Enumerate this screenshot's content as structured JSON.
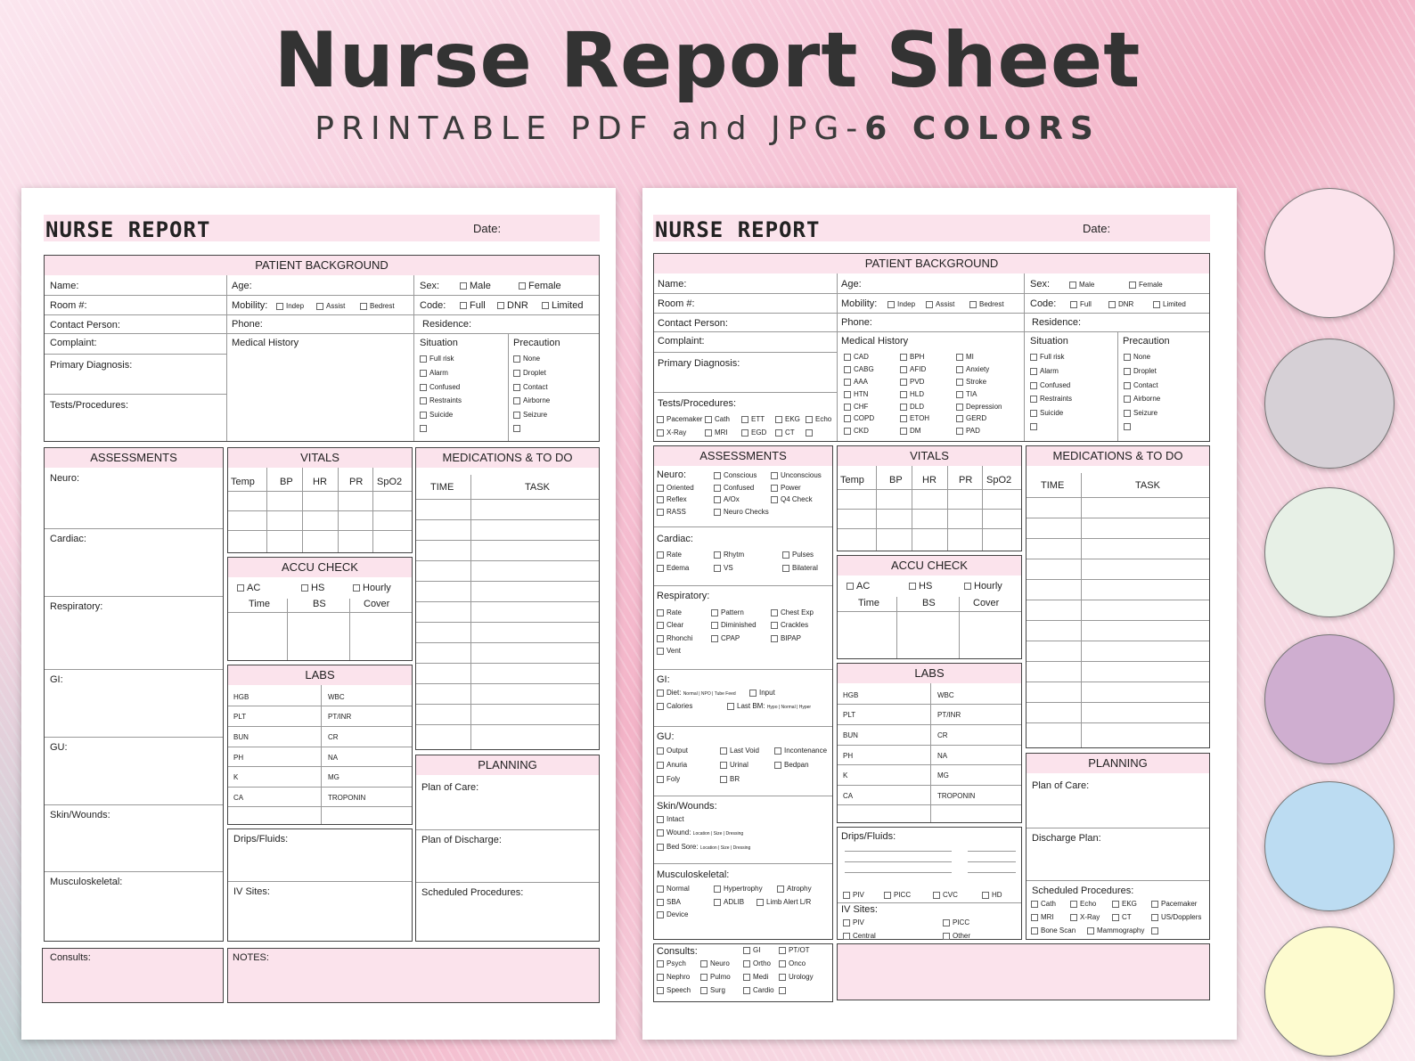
{
  "header": {
    "title": "Nurse Report Sheet",
    "subtitle_a": "PRINTABLE PDF and JPG-",
    "subtitle_b": "6 COLORS"
  },
  "sheet": {
    "title": "NURSE REPORT",
    "date": "Date:"
  },
  "pb": {
    "title": "PATIENT BACKGROUND",
    "name": "Name:",
    "age": "Age:",
    "sex": "Sex:",
    "male": "Male",
    "female": "Female",
    "room": "Room #:",
    "mobility": "Mobility:",
    "indep": "Indep",
    "assist": "Assist",
    "bedrest": "Bedrest",
    "code": "Code:",
    "full": "Full",
    "dnr": "DNR",
    "limited": "Limited",
    "contact": "Contact Person:",
    "phone": "Phone:",
    "residence": "Residence:",
    "complaint": "Complaint:",
    "medhist": "Medical History",
    "situation": "Situation",
    "precaution": "Precaution",
    "primary": "Primary Diagnosis:",
    "tests": "Tests/Procedures:",
    "sit": [
      "Full risk",
      "Alarm",
      "Confused",
      "Restraints",
      "Suicide"
    ],
    "prec": [
      "None",
      "Droplet",
      "Contact",
      "Airborne",
      "Seizure"
    ],
    "mh": [
      "CAD",
      "BPH",
      "MI",
      "CABG",
      "AFID",
      "Anxiety",
      "AAA",
      "PVD",
      "Stroke",
      "HTN",
      "HLD",
      "TIA",
      "CHF",
      "DLD",
      "Depression",
      "COPD",
      "ETOH",
      "GERD",
      "CKD",
      "DM",
      "PAD"
    ],
    "tp": [
      "Pacemaker",
      "Cath",
      "ETT",
      "EKG",
      "Echo",
      "X-Ray",
      "MRI",
      "EGD",
      "CT"
    ]
  },
  "assess": {
    "title": "ASSESSMENTS",
    "neuro": "Neuro:",
    "cardiac": "Cardiac:",
    "resp": "Respiratory:",
    "gi": "GI:",
    "gu": "GU:",
    "skin": "Skin/Wounds:",
    "musc": "Musculoskeletal:",
    "musc2": "Musculoskeletal:",
    "neuro_items": [
      "Conscious",
      "Unconscious",
      "Oriented",
      "Confused",
      "Power",
      "Reflex",
      "A/Ox",
      "Q4 Check",
      "RASS",
      "Neuro Checks"
    ],
    "card_items": [
      "Rate",
      "Rhytm",
      "Pulses",
      "Edema",
      "VS",
      "Bilateral"
    ],
    "resp_items": [
      "Rate",
      "Pattern",
      "Chest Exp",
      "Clear",
      "Diminished",
      "Crackles",
      "Rhonchi",
      "CPAP",
      "BIPAP",
      "Vent"
    ],
    "gi_items": [
      "Diet:",
      "Normal | NPO | Tube Feed",
      "Input",
      "Calories",
      "Last BM:",
      "Hypo | Normal | Hyper"
    ],
    "gu_items": [
      "Output",
      "Last Void",
      "Incontenance",
      "Anuria",
      "Urinal",
      "Bedpan",
      "Foly",
      "BR"
    ],
    "skin_items": [
      "Intact",
      "Wound:",
      "Location",
      "| Size",
      "| Dressing",
      "Bed Sore:"
    ],
    "musc_items": [
      "Normal",
      "Hypertrophy",
      "Atrophy",
      "SBA",
      "ADLIB",
      "Limb Alert L/R",
      "Device"
    ]
  },
  "vitals": {
    "title": "VITALS",
    "cols": [
      "Temp",
      "BP",
      "HR",
      "PR",
      "SpO2"
    ]
  },
  "accu": {
    "title": "ACCU CHECK",
    "ac": "AC",
    "hs": "HS",
    "hourly": "Hourly",
    "time": "Time",
    "bs": "BS",
    "cover": "Cover"
  },
  "labs": {
    "title": "LABS",
    "left": [
      "HGB",
      "PLT",
      "BUN",
      "PH",
      "K",
      "CA"
    ],
    "right": [
      "WBC",
      "PT/INR",
      "CR",
      "NA",
      "MG",
      "TROPONIN"
    ]
  },
  "drips": {
    "drips": "Drips/Fluids:",
    "iv": "IV Sites:",
    "lines": [
      "PIV",
      "PICC",
      "CVC",
      "HD"
    ],
    "iv_items": [
      "PIV",
      "PICC",
      "Central",
      "Other"
    ]
  },
  "meds": {
    "title": "MEDICATIONS & TO DO",
    "time": "TIME",
    "task": "TASK"
  },
  "plan": {
    "title": "PLANNING",
    "care": "Plan of Care:",
    "discharge1": "Plan of Discharge:",
    "discharge2": "Discharge Plan:",
    "sched": "Scheduled Procedures:",
    "sched_items": [
      "Cath",
      "Echo",
      "EKG",
      "Pacemaker",
      "MRI",
      "X-Ray",
      "CT",
      "US/Dopplers",
      "Bone Scan",
      "Mammography"
    ]
  },
  "consults": {
    "title": "Consults:",
    "notes": "NOTES:",
    "items": [
      "GI",
      "PT/OT",
      "Psych",
      "Neuro",
      "Ortho",
      "Onco",
      "Nephro",
      "Pulmo",
      "Medi",
      "Urology",
      "Speech",
      "Surg",
      "Cardio"
    ]
  },
  "colors": [
    "#fbe3ec",
    "#d6d0d6",
    "#e7f0e6",
    "#cfaed0",
    "#bcdcf2",
    "#fdfbcf"
  ]
}
